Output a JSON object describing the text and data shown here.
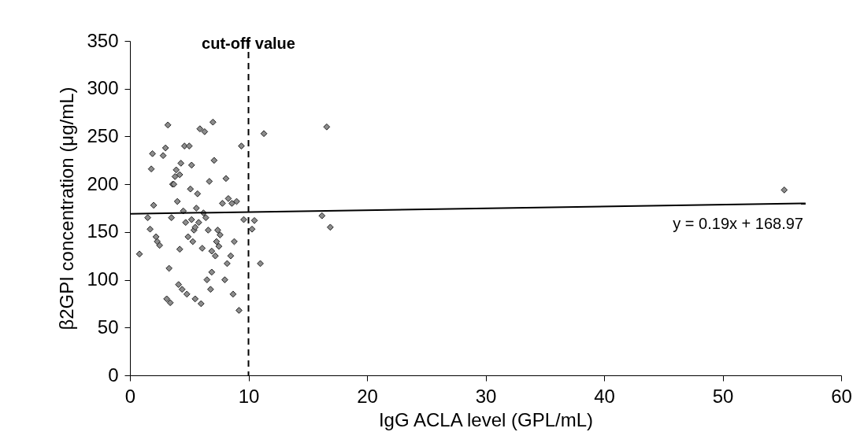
{
  "chart_data": {
    "type": "scatter",
    "xlabel": "IgG ACLA level (GPL/mL)",
    "ylabel": "β2GPI concentration (μg/mL)",
    "xlim": [
      0,
      60
    ],
    "xticks": [
      0,
      10,
      20,
      30,
      40,
      50,
      60
    ],
    "ylim": [
      0,
      350
    ],
    "yticks": [
      0,
      50,
      100,
      150,
      200,
      250,
      300,
      350
    ],
    "grid": false,
    "series": [
      {
        "marker": "diamond",
        "color": "#8c8c8c",
        "x": [
          0.8,
          1.5,
          1.7,
          1.8,
          1.9,
          2.0,
          2.2,
          2.3,
          2.5,
          2.8,
          3.0,
          3.1,
          3.2,
          3.3,
          3.4,
          3.5,
          3.6,
          3.7,
          3.8,
          3.9,
          4.0,
          4.1,
          4.2,
          4.2,
          4.3,
          4.4,
          4.5,
          4.6,
          4.7,
          4.8,
          4.9,
          5.0,
          5.1,
          5.2,
          5.2,
          5.3,
          5.4,
          5.5,
          5.5,
          5.6,
          5.7,
          5.8,
          5.9,
          6.0,
          6.1,
          6.2,
          6.3,
          6.4,
          6.5,
          6.6,
          6.7,
          6.8,
          6.9,
          6.9,
          7.0,
          7.1,
          7.2,
          7.3,
          7.4,
          7.5,
          7.6,
          7.8,
          8.0,
          8.1,
          8.2,
          8.3,
          8.5,
          8.6,
          8.7,
          8.8,
          9.0,
          9.2,
          9.4,
          9.6,
          10.3,
          10.5,
          11.0,
          11.3,
          16.2,
          16.6,
          16.9,
          55.2
        ],
        "values": [
          127,
          165,
          153,
          216,
          232,
          178,
          145,
          140,
          136,
          230,
          238,
          80,
          262,
          112,
          76,
          165,
          200,
          200,
          208,
          215,
          182,
          95,
          132,
          210,
          222,
          90,
          172,
          240,
          160,
          85,
          145,
          240,
          195,
          220,
          163,
          140,
          152,
          80,
          155,
          175,
          190,
          160,
          258,
          75,
          133,
          170,
          255,
          165,
          100,
          152,
          203,
          90,
          108,
          130,
          265,
          225,
          125,
          140,
          152,
          135,
          147,
          180,
          100,
          206,
          117,
          185,
          125,
          180,
          85,
          140,
          182,
          68,
          240,
          163,
          153,
          162,
          117,
          253,
          167,
          260,
          155,
          194
        ]
      },
      {
        "type": "line",
        "marker": "none",
        "color": "#000000",
        "line_style": "solid",
        "x": [
          0,
          57
        ],
        "values": [
          169,
          180
        ]
      }
    ],
    "ref_lines": [
      {
        "axis": "x",
        "value": 10,
        "label": "cut-off value",
        "line_style": "dashed",
        "color": "#000000"
      }
    ],
    "annotations": [
      "y = 0.19x + 168.97"
    ]
  }
}
